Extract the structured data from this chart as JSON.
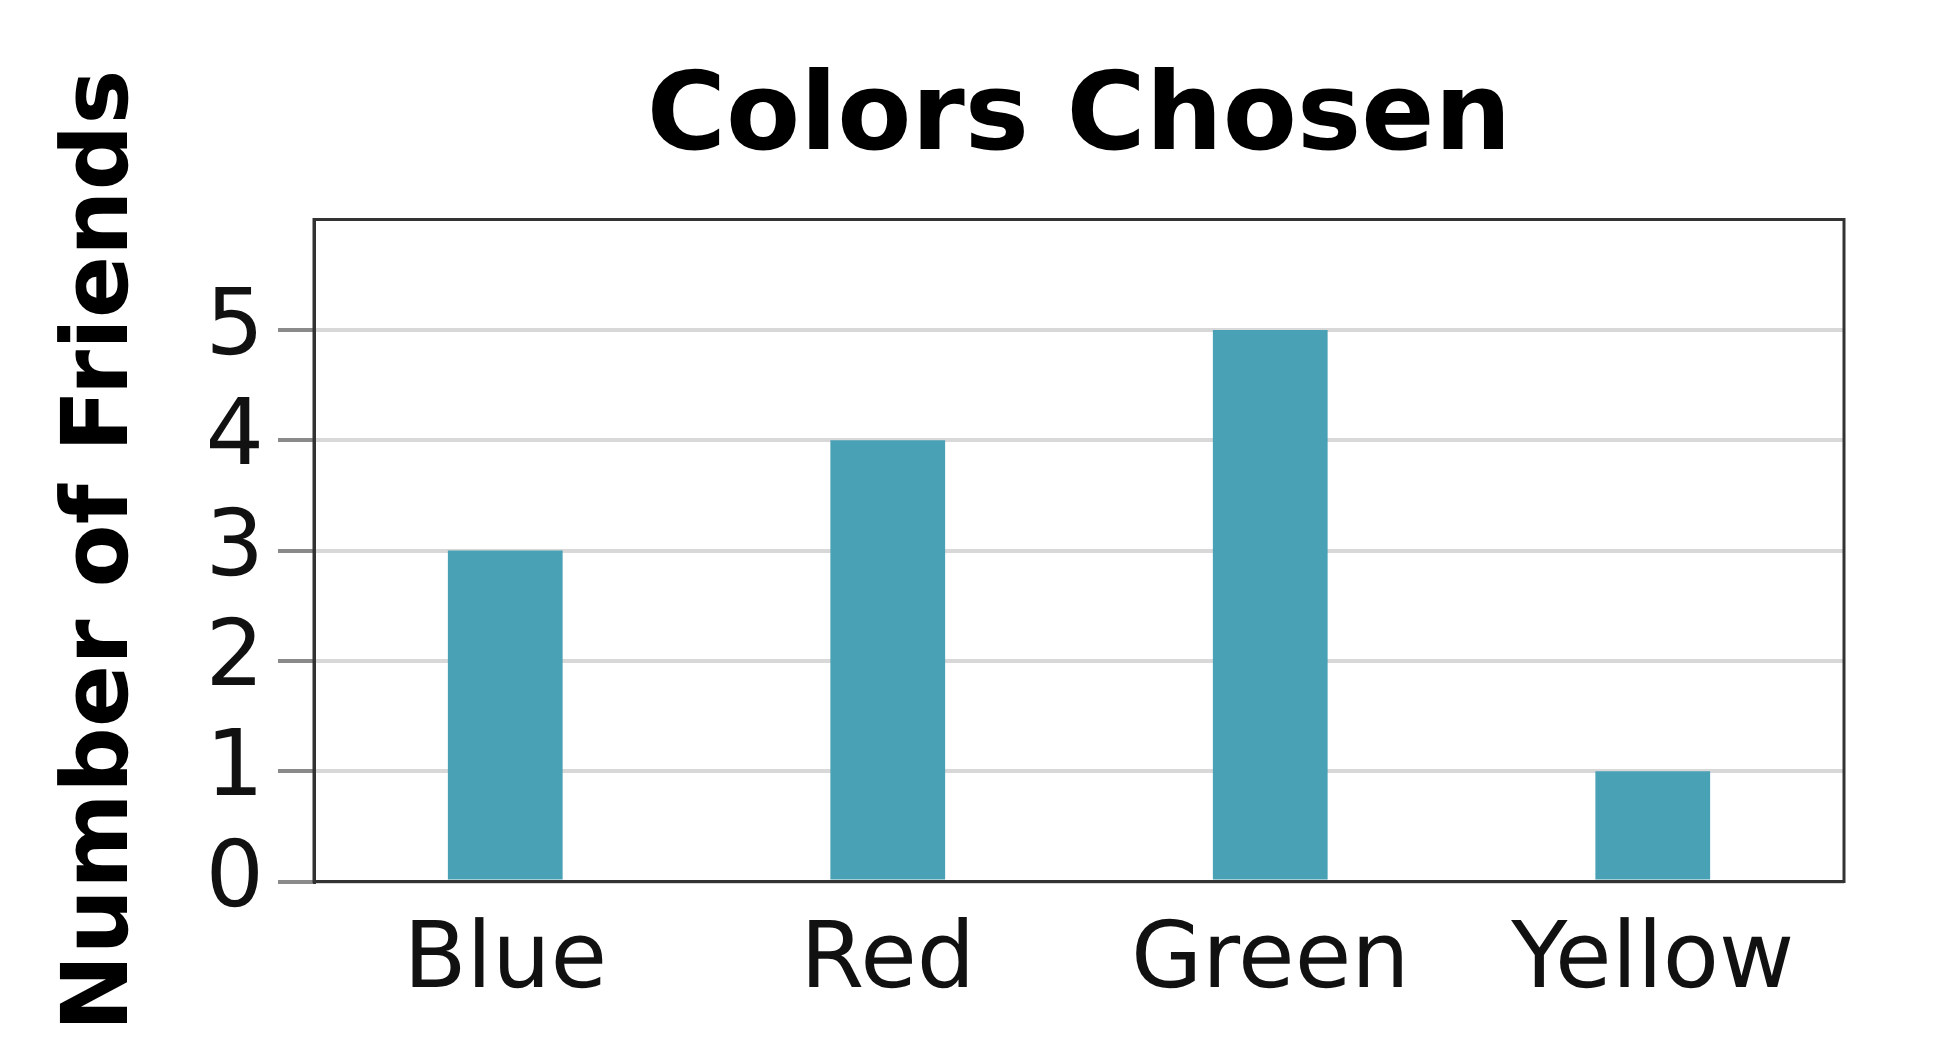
{
  "chart_data": {
    "type": "bar",
    "title": "Colors Chosen",
    "ylabel": "Number of Friends",
    "categories": [
      "Blue",
      "Red",
      "Green",
      "Yellow"
    ],
    "values": [
      3,
      4,
      5,
      1
    ],
    "color": "#48a1b4",
    "ylim": [
      0,
      6
    ],
    "yticks": [
      0,
      1,
      2,
      3,
      4,
      5
    ],
    "grid": "y"
  }
}
